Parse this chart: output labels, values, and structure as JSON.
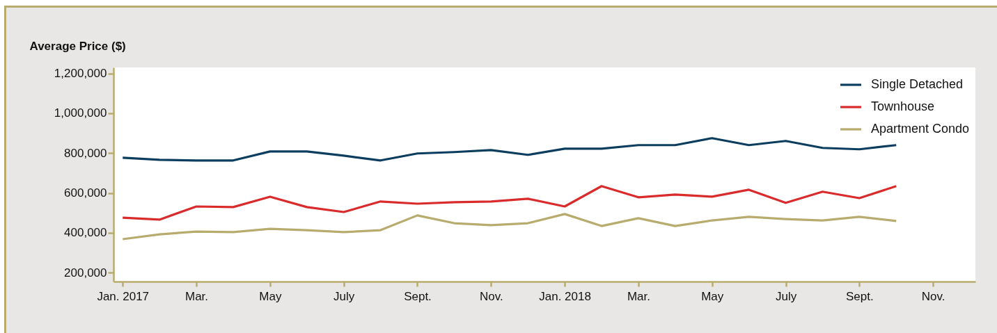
{
  "chart_data": {
    "type": "line",
    "ylabel": "Average Price ($)",
    "categories": [
      "Jan. 2017",
      null,
      "Mar.",
      null,
      "May",
      null,
      "July",
      null,
      "Sept.",
      null,
      "Nov.",
      null,
      "Jan. 2018",
      null,
      "Mar.",
      null,
      "May",
      null,
      "July",
      null,
      "Sept.",
      null,
      "Nov."
    ],
    "series": [
      {
        "name": "Single Detached",
        "color": "#0b3d5e",
        "values": [
          777000,
          766000,
          763000,
          763000,
          808000,
          808000,
          787000,
          763000,
          798000,
          805000,
          815000,
          791000,
          822000,
          822000,
          840000,
          840000,
          875000,
          840000,
          861000,
          826000,
          819000,
          840000,
          null
        ]
      },
      {
        "name": "Townhouse",
        "color": "#d92b2b",
        "values": [
          476000,
          466000,
          532000,
          529000,
          581000,
          529000,
          504000,
          557000,
          546000,
          553000,
          557000,
          571000,
          532000,
          634000,
          578000,
          592000,
          581000,
          616000,
          550000,
          606000,
          574000,
          634000,
          null
        ]
      },
      {
        "name": "Apartment Condo",
        "color": "#b8ab6e",
        "values": [
          368000,
          392000,
          406000,
          403000,
          420000,
          413000,
          403000,
          413000,
          487000,
          448000,
          438000,
          448000,
          494000,
          434000,
          473000,
          434000,
          462000,
          480000,
          469000,
          462000,
          480000,
          459000,
          null
        ]
      }
    ],
    "ylim": [
      155000,
      1230000
    ],
    "yticks": [
      {
        "value": 200000,
        "label": "200,000"
      },
      {
        "value": 400000,
        "label": "400,000"
      },
      {
        "value": 600000,
        "label": "600,000"
      },
      {
        "value": 800000,
        "label": "800,000"
      },
      {
        "value": 1000000,
        "label": "1,000,000"
      },
      {
        "value": 1200000,
        "label": "1,200,000"
      }
    ],
    "grid": false,
    "legend": "top right",
    "marker": "none",
    "line_style": "solid"
  }
}
